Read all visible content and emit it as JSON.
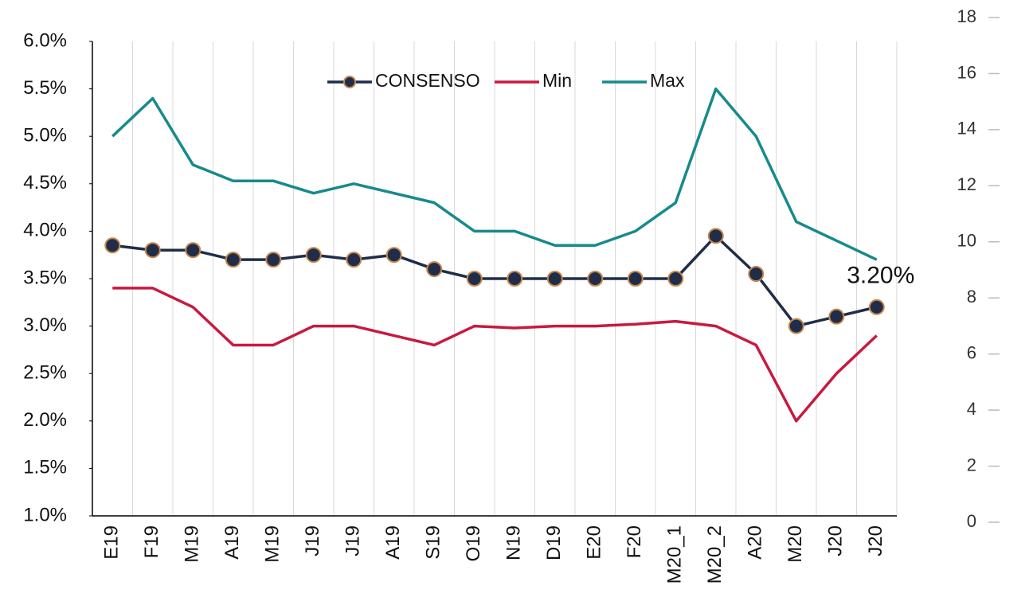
{
  "chart_data": {
    "type": "line",
    "categories": [
      "E19",
      "F19",
      "M19",
      "A19",
      "M19",
      "J19",
      "J19",
      "A19",
      "S19",
      "O19",
      "N19",
      "D19",
      "E20",
      "F20",
      "M20_1",
      "M20_2",
      "A20",
      "M20",
      "J20",
      "J20"
    ],
    "series": [
      {
        "name": "CONSENSO",
        "color": "#1f2d4a",
        "marker": true,
        "marker_edge_color": "#c8874a",
        "values": [
          3.85,
          3.8,
          3.8,
          3.7,
          3.7,
          3.75,
          3.7,
          3.75,
          3.6,
          3.5,
          3.5,
          3.5,
          3.5,
          3.5,
          3.5,
          3.95,
          3.55,
          3.0,
          3.1,
          3.2
        ],
        "value_labels": [
          null,
          null,
          null,
          null,
          null,
          null,
          null,
          null,
          null,
          null,
          null,
          null,
          null,
          null,
          null,
          null,
          null,
          null,
          null,
          "3.20%"
        ]
      },
      {
        "name": "Min",
        "color": "#c8193f",
        "marker": false,
        "values": [
          3.4,
          3.4,
          3.2,
          2.8,
          2.8,
          3.0,
          3.0,
          2.9,
          2.8,
          3.0,
          2.98,
          3.0,
          3.0,
          3.02,
          3.05,
          3.0,
          2.8,
          2.0,
          2.5,
          2.9
        ]
      },
      {
        "name": "Max",
        "color": "#178a8c",
        "marker": false,
        "values": [
          5.0,
          5.4,
          4.7,
          4.53,
          4.53,
          4.4,
          4.5,
          4.4,
          4.3,
          4.0,
          4.0,
          3.85,
          3.85,
          4.0,
          4.3,
          5.5,
          5.0,
          4.1,
          3.9,
          3.7
        ]
      }
    ],
    "ylim": [
      1.0,
      6.0
    ],
    "yticks": [
      {
        "value": 1.0,
        "label": "1.0%"
      },
      {
        "value": 1.5,
        "label": "1.5%"
      },
      {
        "value": 2.0,
        "label": "2.0%"
      },
      {
        "value": 2.5,
        "label": "2.5%"
      },
      {
        "value": 3.0,
        "label": "3.0%"
      },
      {
        "value": 3.5,
        "label": "3.5%"
      },
      {
        "value": 4.0,
        "label": "4.0%"
      },
      {
        "value": 4.5,
        "label": "4.5%"
      },
      {
        "value": 5.0,
        "label": "5.0%"
      },
      {
        "value": 5.5,
        "label": "5.5%"
      },
      {
        "value": 6.0,
        "label": "6.0%"
      }
    ],
    "y2lim": [
      0,
      18
    ],
    "y2ticks": [
      0,
      2,
      4,
      6,
      8,
      10,
      12,
      14,
      16,
      18
    ],
    "grid": true,
    "legend": "upper center"
  }
}
